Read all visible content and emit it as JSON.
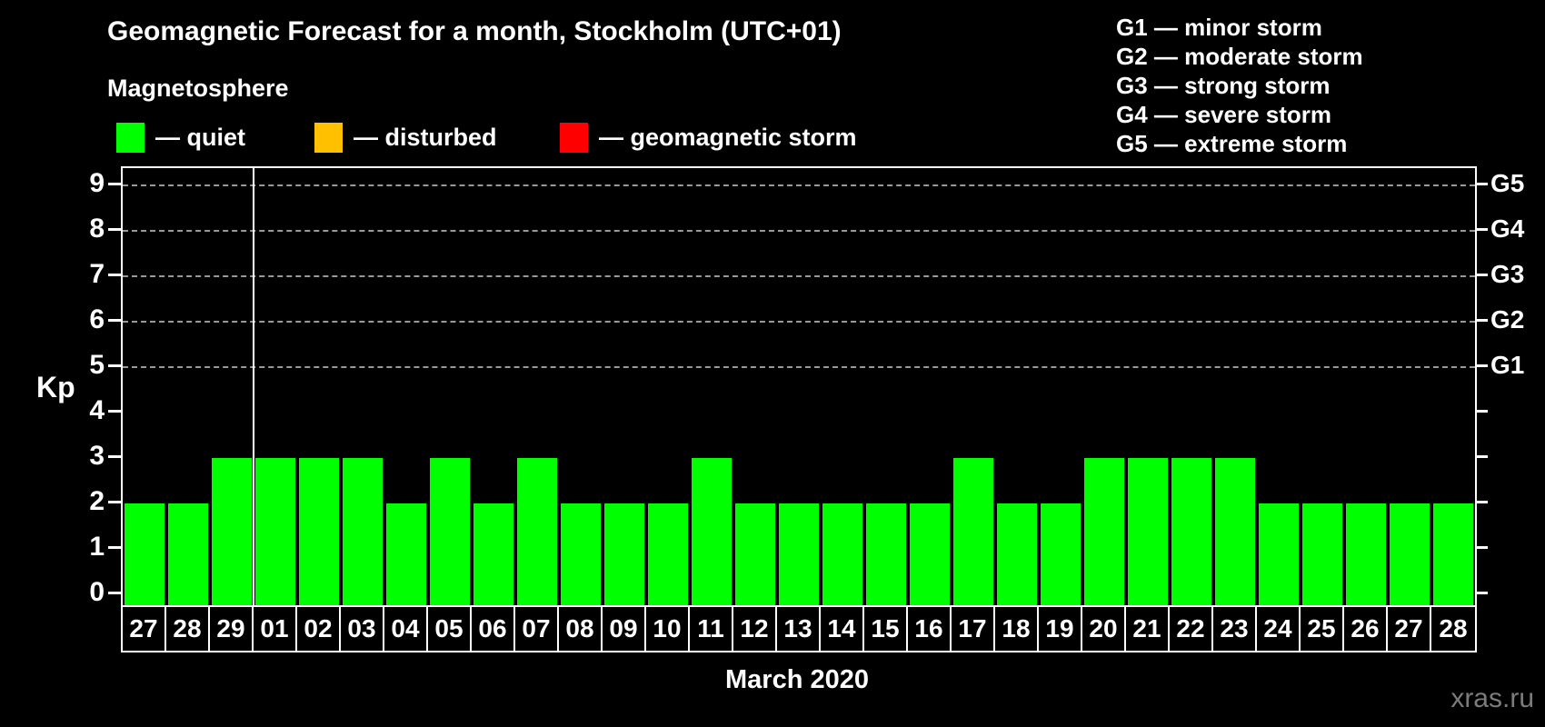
{
  "header": {
    "title": "Geomagnetic Forecast for a month, Stockholm (UTC+01)",
    "subtitle": "Magnetosphere",
    "legend": [
      {
        "label": "— quiet",
        "color": "#00ff00"
      },
      {
        "label": "— disturbed",
        "color": "#ffc000"
      },
      {
        "label": "— geomagnetic storm",
        "color": "#ff0000"
      }
    ],
    "g_scale": [
      "G1 — minor storm",
      "G2 — moderate storm",
      "G3 — strong storm",
      "G4 — severe storm",
      "G5 — extreme storm"
    ]
  },
  "chart_data": {
    "type": "bar",
    "title": "Geomagnetic Forecast for a month, Stockholm (UTC+01)",
    "ylabel": "Kp",
    "xlabel": "March 2020",
    "ylim": [
      0,
      9
    ],
    "yticks": [
      0,
      1,
      2,
      3,
      4,
      5,
      6,
      7,
      8,
      9
    ],
    "gridlines_at": [
      5,
      6,
      7,
      8,
      9
    ],
    "grid": "dashed horizontal at Kp 5-9",
    "legend_position": "top-left",
    "right_axis": [
      {
        "kp": 5,
        "label": "G1"
      },
      {
        "kp": 6,
        "label": "G2"
      },
      {
        "kp": 7,
        "label": "G3"
      },
      {
        "kp": 8,
        "label": "G4"
      },
      {
        "kp": 9,
        "label": "G5"
      }
    ],
    "categories": [
      "27",
      "28",
      "29",
      "01",
      "02",
      "03",
      "04",
      "05",
      "06",
      "07",
      "08",
      "09",
      "10",
      "11",
      "12",
      "13",
      "14",
      "15",
      "16",
      "17",
      "18",
      "19",
      "20",
      "21",
      "22",
      "23",
      "24",
      "25",
      "26",
      "27",
      "28"
    ],
    "values": [
      2,
      2,
      3,
      3,
      3,
      3,
      2,
      3,
      2,
      3,
      2,
      2,
      2,
      3,
      2,
      2,
      2,
      2,
      2,
      3,
      2,
      2,
      3,
      3,
      3,
      3,
      2,
      2,
      2,
      2,
      2
    ],
    "bar_color": "#00ff00",
    "separator_after_index": 2
  },
  "footer": {
    "xaxis_title": "March 2020",
    "watermark": "xras.ru"
  }
}
